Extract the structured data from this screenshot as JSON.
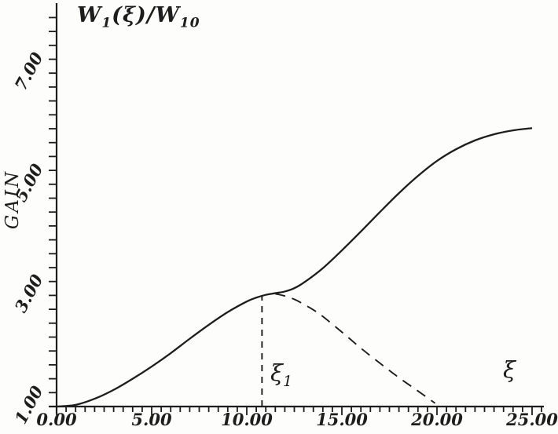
{
  "figure": {
    "title": {
      "base1": "W",
      "sub1": "1",
      "mid": "(ξ)/W",
      "sub2": "10"
    },
    "ylabel": "GAIN",
    "xi1_annotation": {
      "base": "ξ",
      "sub": "1"
    },
    "xi_annotation": "ξ"
  },
  "chart_data": {
    "type": "line",
    "title": "W₁(ξ)/W₁₀",
    "xlabel": "ξ",
    "ylabel": "GAIN",
    "xlim": [
      0,
      25.5
    ],
    "ylim": [
      1.0,
      8.25
    ],
    "grid": false,
    "legend": "none",
    "x_tick_values": [
      0,
      5,
      10,
      15,
      20,
      25
    ],
    "x_tick_labels": [
      "0.00",
      "5.00",
      "10.00",
      "15.00",
      "20.00",
      "25.00"
    ],
    "x_minor_tick_step": 0.5,
    "y_tick_values": [
      1,
      3,
      5,
      7
    ],
    "y_tick_labels": [
      "1.00",
      "3.00",
      "5.00",
      "7.00"
    ],
    "y_minor_tick_step": 0.25,
    "series": [
      {
        "name": "gain-curve-solid",
        "style": "solid",
        "x": [
          0,
          1,
          2,
          3,
          4,
          5,
          6,
          7,
          8,
          9,
          10,
          10.5,
          11,
          11.5,
          12,
          12.5,
          13,
          14,
          15,
          16,
          17,
          18,
          19,
          20,
          21,
          22,
          23,
          24,
          25
        ],
        "y": [
          1.0,
          1.03,
          1.14,
          1.3,
          1.5,
          1.72,
          1.96,
          2.22,
          2.47,
          2.7,
          2.89,
          2.96,
          3.01,
          3.04,
          3.07,
          3.13,
          3.23,
          3.49,
          3.81,
          4.15,
          4.5,
          4.84,
          5.15,
          5.42,
          5.63,
          5.79,
          5.9,
          5.97,
          6.01
        ]
      },
      {
        "name": "declining-branch-dashed",
        "style": "dashed",
        "x": [
          11.5,
          12,
          12.5,
          13,
          13.5,
          14,
          15,
          16,
          17,
          18,
          19,
          19.9
        ],
        "y": [
          3.03,
          2.99,
          2.93,
          2.84,
          2.74,
          2.62,
          2.34,
          2.05,
          1.78,
          1.52,
          1.28,
          1.06
        ]
      },
      {
        "name": "xi1-vertical-marker-dashed",
        "style": "dashed-vertical",
        "x": [
          10.8,
          10.8
        ],
        "y": [
          1.0,
          3.0
        ]
      }
    ],
    "annotations": [
      {
        "text": "ξ₁",
        "x": 11.7,
        "y": 1.45
      },
      {
        "text": "ξ",
        "x": 23.9,
        "y": 1.5
      }
    ]
  }
}
